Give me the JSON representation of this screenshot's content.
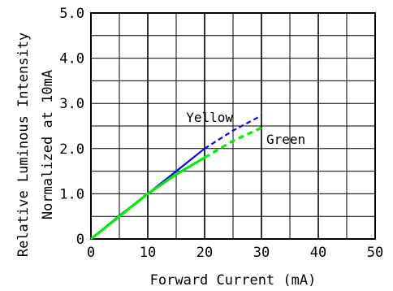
{
  "chart_data": {
    "type": "line",
    "title": "",
    "xlabel": "Forward Current (mA)",
    "ylabel_lines": [
      "Relative Luminous Intensity",
      "Normalized at 10mA"
    ],
    "xlim": [
      0,
      50
    ],
    "ylim": [
      0,
      5
    ],
    "x_ticks": [
      0,
      10,
      20,
      30,
      40,
      50
    ],
    "y_ticks": [
      0,
      1,
      2,
      3,
      4,
      5
    ],
    "x_tick_labels": [
      "0",
      "10",
      "20",
      "30",
      "40",
      "50"
    ],
    "y_tick_labels": [
      "0",
      "1.0",
      "2.0",
      "3.0",
      "4.0",
      "5.0"
    ],
    "grid": true,
    "x_minor_step": 5,
    "series": [
      {
        "name": "Yellow",
        "color": "#0000ff",
        "solid": [
          [
            0,
            0
          ],
          [
            5,
            0.52
          ],
          [
            10,
            1.0
          ],
          [
            15,
            1.5
          ],
          [
            20,
            2.0
          ]
        ],
        "dashed": [
          [
            20,
            2.0
          ],
          [
            25,
            2.4
          ],
          [
            30,
            2.73
          ]
        ]
      },
      {
        "name": "Green",
        "color": "#00ee00",
        "solid": [
          [
            0,
            0
          ],
          [
            5,
            0.5
          ],
          [
            10,
            1.0
          ],
          [
            15,
            1.43
          ],
          [
            20,
            1.8
          ]
        ],
        "dashed": [
          [
            20,
            1.8
          ],
          [
            25,
            2.17
          ],
          [
            30,
            2.46
          ]
        ]
      }
    ]
  }
}
